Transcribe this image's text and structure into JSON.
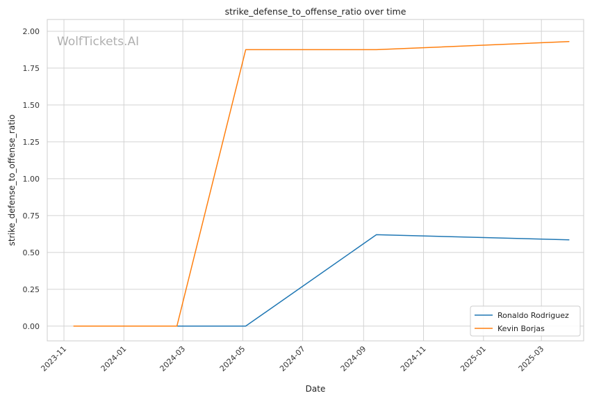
{
  "chart_data": {
    "type": "line",
    "title": "strike_defense_to_offense_ratio over time",
    "xlabel": "Date",
    "ylabel": "strike_defense_to_offense_ratio",
    "watermark": "WolfTickets.AI",
    "x_tick_labels": [
      "2023-11",
      "2024-01",
      "2024-03",
      "2024-05",
      "2024-07",
      "2024-09",
      "2024-11",
      "2025-01",
      "2025-03"
    ],
    "x_ticks": [
      "2023-11-01",
      "2024-01-01",
      "2024-03-01",
      "2024-05-01",
      "2024-07-01",
      "2024-09-01",
      "2024-11-01",
      "2025-01-01",
      "2025-03-01"
    ],
    "xlim": [
      "2023-10-15",
      "2025-04-13"
    ],
    "y_ticks": [
      0.0,
      0.25,
      0.5,
      0.75,
      1.0,
      1.25,
      1.5,
      1.75,
      2.0
    ],
    "y_tick_labels": [
      "0.00",
      "0.25",
      "0.50",
      "0.75",
      "1.00",
      "1.25",
      "1.50",
      "1.75",
      "2.00"
    ],
    "ylim": [
      -0.1,
      2.08
    ],
    "grid": true,
    "legend_position": "bottom-right",
    "series": [
      {
        "name": "Ronaldo Rodriguez",
        "color": "#1f77b4",
        "x": [
          "2024-02-24",
          "2024-05-04",
          "2024-09-14",
          "2025-03-29"
        ],
        "y": [
          0.0,
          0.0,
          0.62,
          0.585
        ]
      },
      {
        "name": "Kevin Borjas",
        "color": "#ff7f0e",
        "x": [
          "2023-11-11",
          "2024-02-24",
          "2024-05-04",
          "2024-09-14",
          "2025-03-29"
        ],
        "y": [
          0.0,
          0.0,
          1.875,
          1.875,
          1.93
        ]
      }
    ]
  }
}
